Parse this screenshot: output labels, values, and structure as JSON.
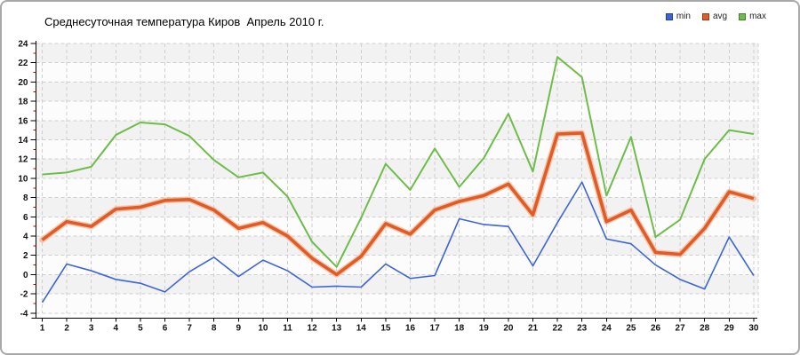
{
  "chart": {
    "legend_labels": [
      "min",
      "avg",
      "max"
    ]
  },
  "chart_data": {
    "type": "line",
    "title": "Среднесуточная температура Киров  Апрель 2010 г.",
    "xlabel": "",
    "ylabel": "",
    "x": [
      1,
      2,
      3,
      4,
      5,
      6,
      7,
      8,
      9,
      10,
      11,
      12,
      13,
      14,
      15,
      16,
      17,
      18,
      19,
      20,
      21,
      22,
      23,
      24,
      25,
      26,
      27,
      28,
      29,
      30
    ],
    "series": [
      {
        "name": "min",
        "color": "#3c64d9",
        "values": [
          -2.9,
          1.1,
          0.4,
          -0.5,
          -0.9,
          -1.8,
          0.3,
          1.8,
          -0.2,
          1.5,
          0.4,
          -1.3,
          -1.2,
          -1.3,
          1.1,
          -0.4,
          -0.1,
          5.8,
          5.2,
          5.0,
          0.9,
          5.4,
          9.6,
          3.7,
          3.2,
          1.0,
          -0.5,
          -1.5,
          3.9,
          -0.1
        ]
      },
      {
        "name": "avg",
        "color": "#df5c28",
        "halo": "#f2b894",
        "values": [
          3.6,
          5.5,
          5.0,
          6.8,
          7.0,
          7.7,
          7.8,
          6.7,
          4.8,
          5.4,
          4.0,
          1.7,
          0.0,
          1.9,
          5.3,
          4.2,
          6.7,
          7.6,
          8.2,
          9.4,
          6.2,
          14.6,
          14.7,
          5.5,
          6.7,
          2.3,
          2.1,
          4.8,
          8.6,
          7.9
        ]
      },
      {
        "name": "max",
        "color": "#6ebd49",
        "values": [
          10.4,
          10.6,
          11.2,
          14.5,
          15.8,
          15.6,
          14.4,
          11.9,
          10.1,
          10.6,
          8.1,
          3.4,
          0.8,
          5.9,
          11.5,
          8.8,
          13.1,
          9.1,
          12.1,
          16.7,
          10.7,
          22.6,
          20.5,
          8.2,
          14.3,
          3.9,
          5.7,
          12.0,
          15.0,
          14.6
        ]
      }
    ],
    "ylim": [
      -4,
      24
    ],
    "yticks": [
      24,
      22,
      20,
      18,
      16,
      14,
      12,
      10,
      8,
      6,
      4,
      2,
      0,
      -2,
      -4
    ],
    "ytick_minor_step": 1,
    "grid": "dashed",
    "grid_color": "#cfcfcf",
    "band_colors": [
      "#f2f2f2",
      "#fcfcfc"
    ],
    "axis_color": "#000000",
    "minor_tick_color": "#cc0000",
    "legend_position": "top-right"
  }
}
